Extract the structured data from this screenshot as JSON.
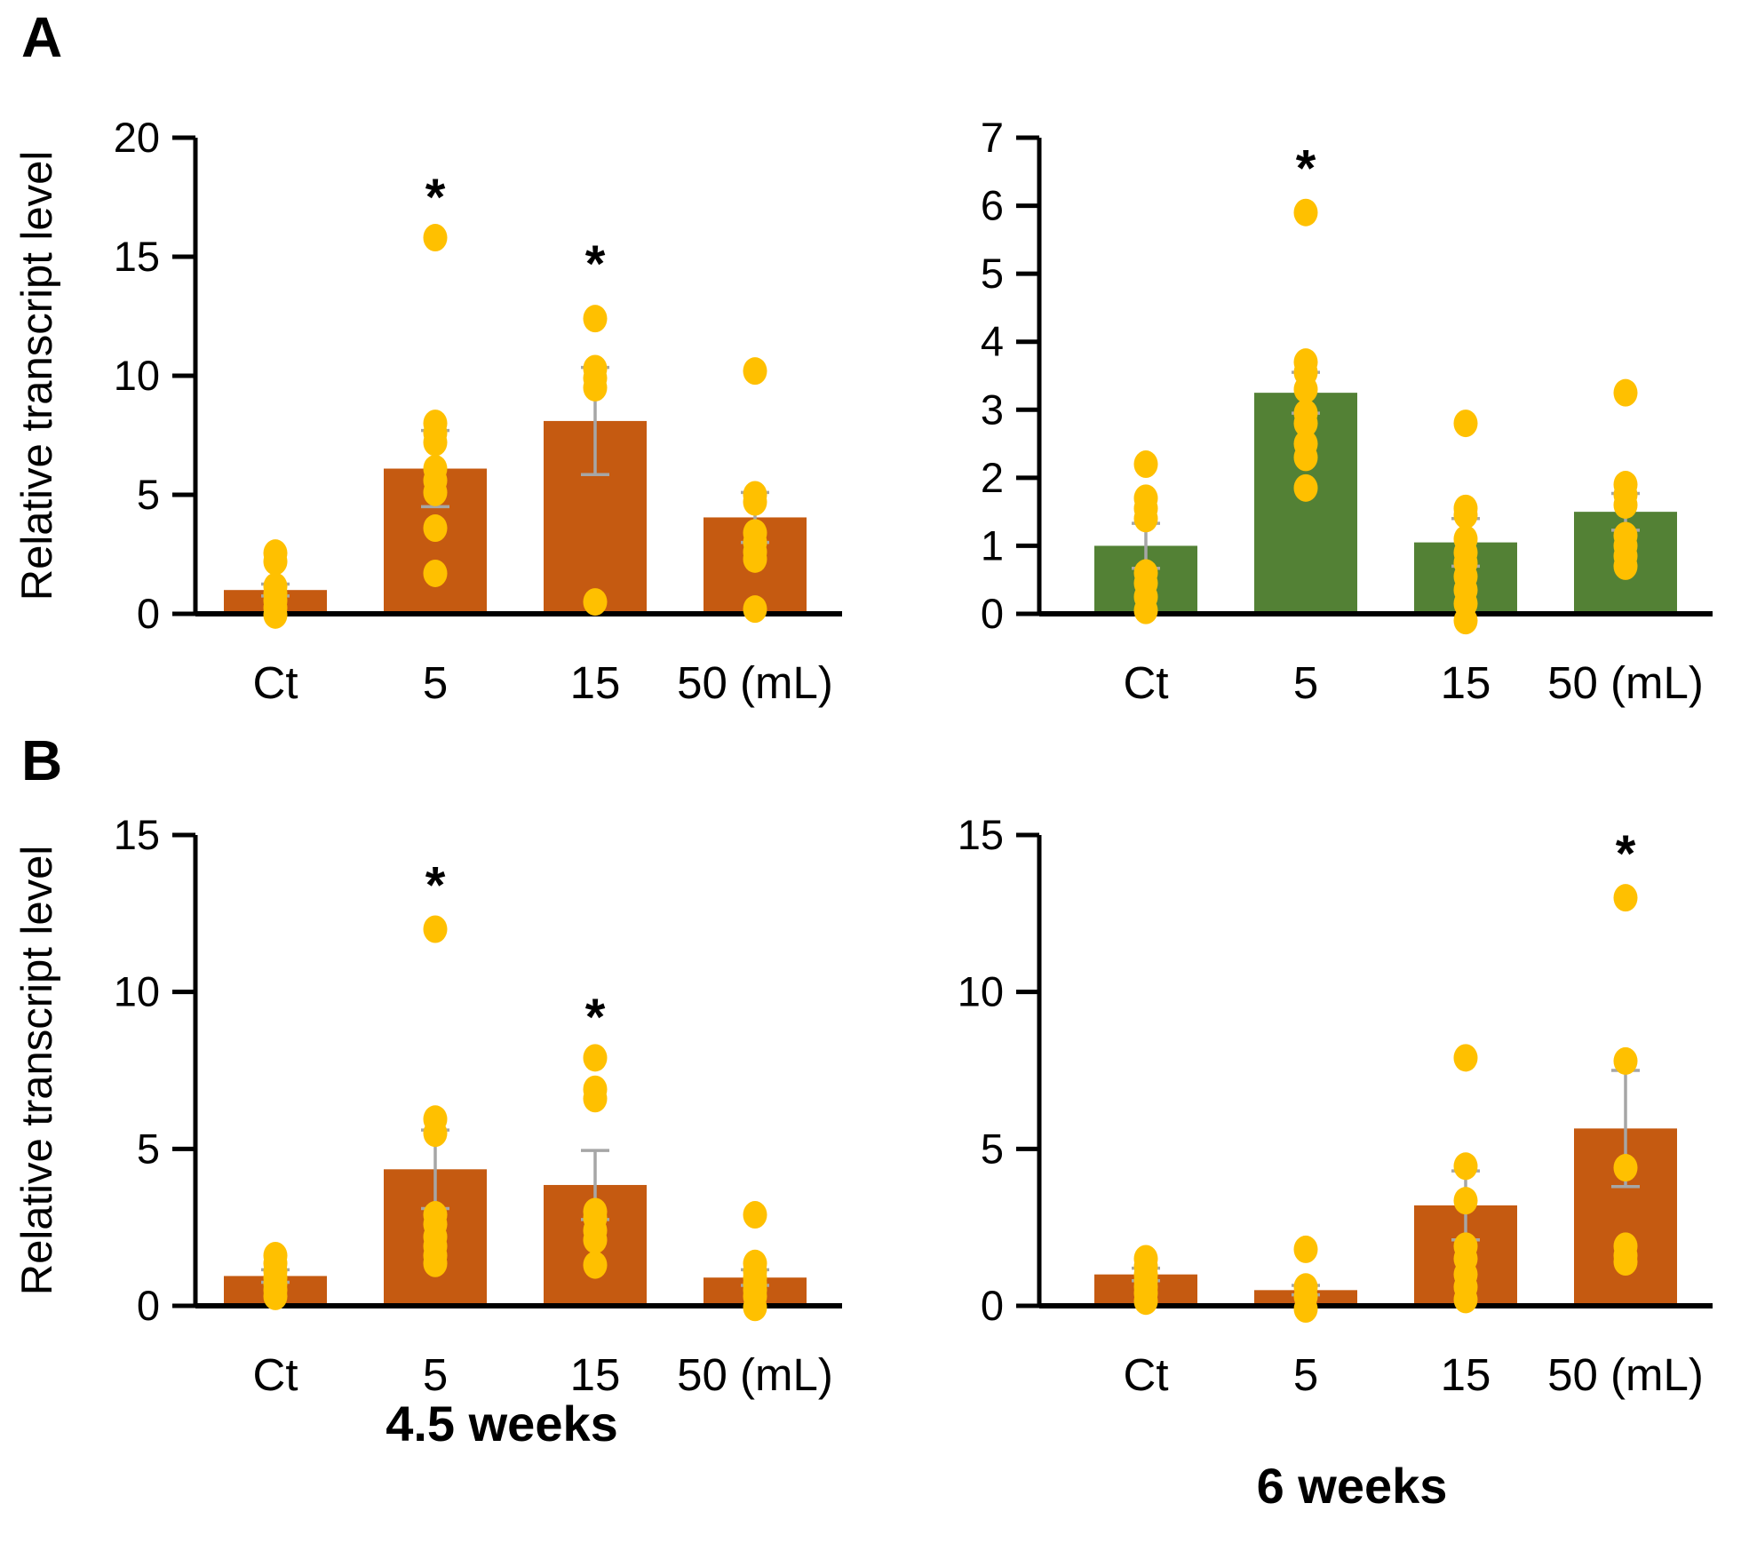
{
  "figure": {
    "panel_a_label": "A",
    "panel_b_label": "B",
    "week_label_left": "4.5 weeks",
    "week_label_right": "6 weeks"
  },
  "colors": {
    "orange_bar": "#C55A11",
    "green_bar": "#538135",
    "dot": "#FFC000",
    "error_bar": "#A6A6A6",
    "axis": "#000000",
    "background": "#FFFFFF",
    "significance_marker": "#000000"
  },
  "chart_data": [
    {
      "id": "A-left",
      "type": "bar",
      "panel": "A",
      "row": "top",
      "ylabel": "Relative transcript level",
      "xlabel": "",
      "ylim": [
        0,
        20
      ],
      "yticks": [
        0,
        5,
        10,
        15,
        20
      ],
      "categories": [
        "Ct",
        "5",
        "15",
        "50 (mL)"
      ],
      "bar_color": "#C55A11",
      "legend": null,
      "grid": false,
      "series": [
        {
          "category": "Ct",
          "mean": 1.0,
          "sem": 0.25,
          "significant": false,
          "asterisk_y": null,
          "points": [
            2.55,
            2.2,
            1.15,
            0.85,
            0.55,
            0.25,
            -0.05
          ]
        },
        {
          "category": "5",
          "mean": 6.1,
          "sem": 1.6,
          "significant": true,
          "asterisk_y": 17.5,
          "points": [
            15.8,
            8.0,
            7.6,
            7.2,
            6.1,
            5.6,
            5.1,
            3.6,
            1.7
          ]
        },
        {
          "category": "15",
          "mean": 8.1,
          "sem": 2.25,
          "significant": true,
          "asterisk_y": 14.7,
          "points": [
            12.4,
            10.3,
            9.9,
            9.5,
            0.5
          ]
        },
        {
          "category": "50 (mL)",
          "mean": 4.05,
          "sem": 1.05,
          "significant": false,
          "asterisk_y": null,
          "points": [
            10.2,
            5.0,
            4.7,
            3.4,
            3.0,
            2.6,
            2.3,
            0.2
          ]
        }
      ]
    },
    {
      "id": "A-right",
      "type": "bar",
      "panel": "A",
      "row": "top",
      "ylabel": "",
      "xlabel": "",
      "ylim": [
        0,
        7
      ],
      "yticks": [
        0,
        1,
        2,
        3,
        4,
        5,
        6,
        7
      ],
      "categories": [
        "Ct",
        "5",
        "15",
        "50 (mL)"
      ],
      "bar_color": "#538135",
      "legend": null,
      "grid": false,
      "series": [
        {
          "category": "Ct",
          "mean": 1.0,
          "sem": 0.33,
          "significant": false,
          "asterisk_y": null,
          "points": [
            2.2,
            1.7,
            1.55,
            1.4,
            0.6,
            0.45,
            0.25,
            0.05
          ]
        },
        {
          "category": "5",
          "mean": 3.25,
          "sem": 0.3,
          "significant": true,
          "asterisk_y": 6.55,
          "points": [
            5.9,
            3.7,
            3.55,
            3.3,
            2.95,
            2.8,
            2.5,
            2.3,
            1.85
          ]
        },
        {
          "category": "15",
          "mean": 1.05,
          "sem": 0.35,
          "significant": false,
          "asterisk_y": null,
          "points": [
            2.8,
            1.55,
            1.45,
            1.1,
            0.9,
            0.75,
            0.55,
            0.35,
            0.15,
            -0.1
          ]
        },
        {
          "category": "50 (mL)",
          "mean": 1.5,
          "sem": 0.27,
          "significant": false,
          "asterisk_y": null,
          "points": [
            3.25,
            1.9,
            1.75,
            1.6,
            1.15,
            1.0,
            0.85,
            0.7
          ]
        }
      ]
    },
    {
      "id": "B-left",
      "type": "bar",
      "panel": "B",
      "row": "bottom",
      "ylabel": "Relative transcript level",
      "xlabel": "4.5 weeks",
      "ylim": [
        0,
        15
      ],
      "yticks": [
        0,
        5,
        10,
        15
      ],
      "categories": [
        "Ct",
        "5",
        "15",
        "50 (mL)"
      ],
      "bar_color": "#C55A11",
      "legend": null,
      "grid": false,
      "series": [
        {
          "category": "Ct",
          "mean": 0.95,
          "sem": 0.2,
          "significant": false,
          "asterisk_y": null,
          "points": [
            1.6,
            1.35,
            1.1,
            0.9,
            0.7,
            0.5,
            0.3
          ]
        },
        {
          "category": "5",
          "mean": 4.35,
          "sem": 1.25,
          "significant": true,
          "asterisk_y": 13.4,
          "points": [
            12.0,
            5.95,
            5.5,
            2.9,
            2.6,
            2.2,
            1.9,
            1.6,
            1.35
          ]
        },
        {
          "category": "15",
          "mean": 3.85,
          "sem": 1.1,
          "significant": true,
          "asterisk_y": 9.2,
          "points": [
            7.9,
            6.9,
            6.6,
            3.0,
            2.8,
            2.4,
            2.1,
            1.3
          ]
        },
        {
          "category": "50 (mL)",
          "mean": 0.9,
          "sem": 0.25,
          "significant": false,
          "asterisk_y": null,
          "points": [
            2.9,
            1.35,
            1.1,
            0.9,
            0.7,
            0.5,
            0.3,
            -0.05
          ]
        }
      ]
    },
    {
      "id": "B-right",
      "type": "bar",
      "panel": "B",
      "row": "bottom",
      "ylabel": "",
      "xlabel": "6 weeks",
      "ylim": [
        0,
        15
      ],
      "yticks": [
        0,
        5,
        10,
        15
      ],
      "categories": [
        "Ct",
        "5",
        "15",
        "50 (mL)"
      ],
      "bar_color": "#C55A11",
      "legend": null,
      "grid": false,
      "series": [
        {
          "category": "Ct",
          "mean": 1.0,
          "sem": 0.2,
          "significant": false,
          "asterisk_y": null,
          "points": [
            1.5,
            1.25,
            1.0,
            0.8,
            0.6,
            0.4,
            0.15
          ]
        },
        {
          "category": "5",
          "mean": 0.5,
          "sem": 0.15,
          "significant": false,
          "asterisk_y": null,
          "points": [
            1.8,
            0.6,
            0.3,
            -0.1
          ]
        },
        {
          "category": "15",
          "mean": 3.2,
          "sem": 1.1,
          "significant": false,
          "asterisk_y": null,
          "points": [
            7.9,
            4.45,
            3.35,
            1.9,
            1.5,
            1.0,
            0.6,
            0.2
          ]
        },
        {
          "category": "50 (mL)",
          "mean": 5.65,
          "sem": 1.85,
          "significant": true,
          "asterisk_y": 14.4,
          "points": [
            13.0,
            7.8,
            4.4,
            1.9,
            1.6,
            1.4
          ]
        }
      ]
    }
  ]
}
